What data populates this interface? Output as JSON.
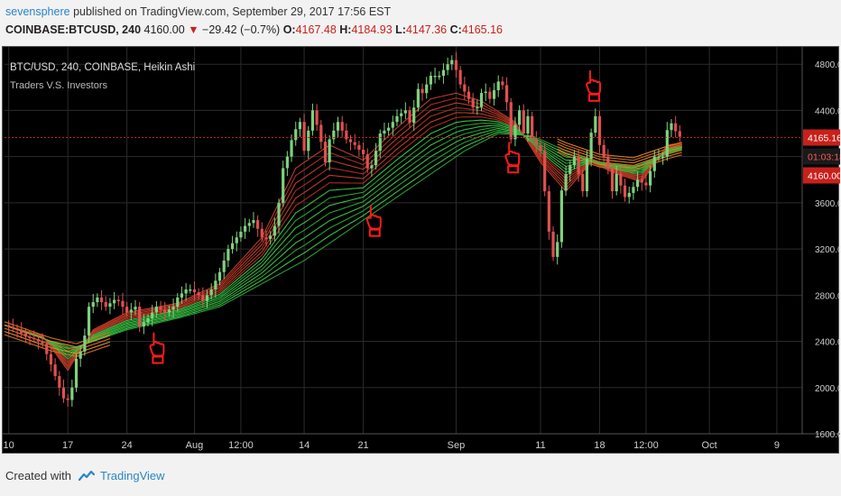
{
  "header": {
    "author": "sevensphere",
    "published": "published on TradingView.com, September 29, 2017 17:56 EST",
    "symbol": "COINBASE:BTCUSD, 240",
    "last": "4160.00",
    "arrow": "▼",
    "change": "−29.42 (−0.7%)",
    "o_label": "O:",
    "o": "4167.48",
    "h_label": "H:",
    "h": "4184.93",
    "l_label": "L:",
    "l": "4147.36",
    "c_label": "C:",
    "c": "4165.16"
  },
  "legend": {
    "line1": "BTC/USD, 240, COINBASE, Heikin Ashi",
    "line2": "Traders V.S. Investors"
  },
  "price_labels": {
    "current": "4165.16",
    "timer": "01:03:18",
    "last": "4160.00"
  },
  "footer": {
    "created_with": "Created with",
    "brand": "TradingView"
  },
  "colors": {
    "background": "#000000",
    "up_candle": "#7fd17f",
    "down_candle": "#e05050",
    "trader_ribbon": "#c0392b",
    "investor_ribbon": "#2ecc40",
    "annotation": "#ff1a1a",
    "price_tag": "#c8201b"
  },
  "chart_data": {
    "type": "line",
    "title": "BTC/USD, 240, COINBASE, Heikin Ashi",
    "subtitle": "Traders V.S. Investors",
    "xlabel": "",
    "ylabel": "",
    "ylim": [
      1600,
      4950
    ],
    "yticks": [
      1600,
      2000,
      2400,
      2800,
      3200,
      3600,
      4000,
      4400,
      4800
    ],
    "ytick_labels": [
      "1600.00",
      "2000.00",
      "2400.00",
      "2800.00",
      "3200.00",
      "3600.00",
      "4000.00",
      "4400.00",
      "4800.00"
    ],
    "xticks": [
      {
        "label": "10",
        "day": 10
      },
      {
        "label": "17",
        "day": 17
      },
      {
        "label": "24",
        "day": 24
      },
      {
        "label": "Aug",
        "day": 32
      },
      {
        "label": "12:00",
        "day": 37.5
      },
      {
        "label": "14",
        "day": 45
      },
      {
        "label": "21",
        "day": 52
      },
      {
        "label": "Sep",
        "day": 63
      },
      {
        "label": "11",
        "day": 73
      },
      {
        "label": "18",
        "day": 80
      },
      {
        "label": "12:00",
        "day": 85.5
      },
      {
        "label": "Oct",
        "day": 93
      },
      {
        "label": "9",
        "day": 101
      }
    ],
    "grid": true,
    "xlim": [
      9.5,
      104
    ],
    "series": [
      {
        "role": "price",
        "points": [
          [
            9.5,
            2540
          ],
          [
            11,
            2500
          ],
          [
            12,
            2440
          ],
          [
            13,
            2420
          ],
          [
            14,
            2380
          ],
          [
            15,
            2200
          ],
          [
            16,
            2000
          ],
          [
            16.8,
            1850
          ],
          [
            17.5,
            2000
          ],
          [
            18,
            2250
          ],
          [
            18.8,
            2350
          ],
          [
            19.5,
            2700
          ],
          [
            20.5,
            2780
          ],
          [
            21.5,
            2700
          ],
          [
            22.5,
            2760
          ],
          [
            23,
            2750
          ],
          [
            24,
            2650
          ],
          [
            25,
            2700
          ],
          [
            25.5,
            2530
          ],
          [
            26.5,
            2600
          ],
          [
            27.5,
            2700
          ],
          [
            28.5,
            2650
          ],
          [
            29.5,
            2700
          ],
          [
            30,
            2780
          ],
          [
            31,
            2850
          ],
          [
            31.5,
            2850
          ],
          [
            32.5,
            2800
          ],
          [
            33,
            2750
          ],
          [
            34,
            2850
          ],
          [
            35,
            3000
          ],
          [
            36,
            3200
          ],
          [
            37,
            3300
          ],
          [
            38,
            3400
          ],
          [
            39,
            3450
          ],
          [
            40,
            3300
          ],
          [
            40.8,
            3280
          ],
          [
            41.5,
            3400
          ],
          [
            42,
            3600
          ],
          [
            42.5,
            3900
          ],
          [
            43,
            4000
          ],
          [
            43.7,
            4200
          ],
          [
            44.5,
            4300
          ],
          [
            45,
            4050
          ],
          [
            46,
            4400
          ],
          [
            46.8,
            4200
          ],
          [
            47.5,
            3950
          ],
          [
            48,
            4150
          ],
          [
            49,
            4300
          ],
          [
            50,
            4150
          ],
          [
            51,
            4100
          ],
          [
            52,
            4020
          ],
          [
            52.7,
            3850
          ],
          [
            53.5,
            4050
          ],
          [
            54,
            4200
          ],
          [
            55,
            4250
          ],
          [
            56,
            4350
          ],
          [
            57,
            4400
          ],
          [
            57.7,
            4250
          ],
          [
            58.3,
            4600
          ],
          [
            59,
            4550
          ],
          [
            60,
            4700
          ],
          [
            61,
            4700
          ],
          [
            62,
            4800
          ],
          [
            62.7,
            4850
          ],
          [
            63.3,
            4650
          ],
          [
            64.5,
            4500
          ],
          [
            65.3,
            4380
          ],
          [
            66.2,
            4600
          ],
          [
            67,
            4500
          ],
          [
            68,
            4650
          ],
          [
            68.8,
            4600
          ],
          [
            69.5,
            4150
          ],
          [
            70.5,
            4400
          ],
          [
            71,
            4200
          ],
          [
            71.5,
            4350
          ],
          [
            72,
            4150
          ],
          [
            73,
            4050
          ],
          [
            73.5,
            3700
          ],
          [
            74,
            3350
          ],
          [
            74.8,
            3000
          ],
          [
            75.3,
            3650
          ],
          [
            76,
            3850
          ],
          [
            77,
            4000
          ],
          [
            78,
            3700
          ],
          [
            78.8,
            4150
          ],
          [
            79.5,
            4350
          ],
          [
            80,
            4100
          ],
          [
            81,
            3900
          ],
          [
            81.5,
            3700
          ],
          [
            82,
            3850
          ],
          [
            83,
            3650
          ],
          [
            83.7,
            3700
          ],
          [
            84.5,
            3800
          ],
          [
            85.5,
            3750
          ],
          [
            86.5,
            4000
          ],
          [
            87.5,
            4000
          ],
          [
            88,
            4230
          ],
          [
            88.6,
            4300
          ],
          [
            89.2,
            4180
          ],
          [
            89.8,
            4165
          ]
        ]
      },
      {
        "role": "ribbon-outer",
        "points": [
          [
            9.5,
            2540
          ],
          [
            15,
            2400
          ],
          [
            18,
            2350
          ],
          [
            24,
            2500
          ],
          [
            30,
            2600
          ],
          [
            35,
            2700
          ],
          [
            40,
            2900
          ],
          [
            45,
            3100
          ],
          [
            50,
            3350
          ],
          [
            55,
            3600
          ],
          [
            60,
            3850
          ],
          [
            64,
            4050
          ],
          [
            68,
            4200
          ],
          [
            72,
            4180
          ],
          [
            76,
            4050
          ],
          [
            80,
            3950
          ],
          [
            84,
            3920
          ],
          [
            88,
            4020
          ],
          [
            90,
            4060
          ]
        ]
      },
      {
        "role": "ribbon-inner",
        "points": [
          [
            9.5,
            2540
          ],
          [
            14,
            2450
          ],
          [
            17,
            2150
          ],
          [
            20,
            2500
          ],
          [
            24,
            2650
          ],
          [
            30,
            2730
          ],
          [
            35,
            2900
          ],
          [
            40,
            3300
          ],
          [
            44,
            3900
          ],
          [
            48,
            4100
          ],
          [
            52,
            3970
          ],
          [
            56,
            4250
          ],
          [
            60,
            4500
          ],
          [
            63,
            4550
          ],
          [
            66,
            4480
          ],
          [
            70,
            4300
          ],
          [
            73,
            3950
          ],
          [
            76,
            3700
          ],
          [
            79,
            3950
          ],
          [
            82,
            3850
          ],
          [
            85,
            3780
          ],
          [
            88,
            4100
          ],
          [
            90,
            4120
          ]
        ]
      }
    ],
    "annotations": [
      {
        "text": "",
        "x": 27.5,
        "y": 2330,
        "kind": "hand-pointer"
      },
      {
        "text": "",
        "x": 53.2,
        "y": 3430,
        "kind": "hand-pointer"
      },
      {
        "text": "",
        "x": 69.6,
        "y": 3980,
        "kind": "hand-pointer"
      },
      {
        "text": "",
        "x": 79.2,
        "y": 4600,
        "kind": "hand-pointer"
      }
    ],
    "current_price_line": 4165.16
  }
}
